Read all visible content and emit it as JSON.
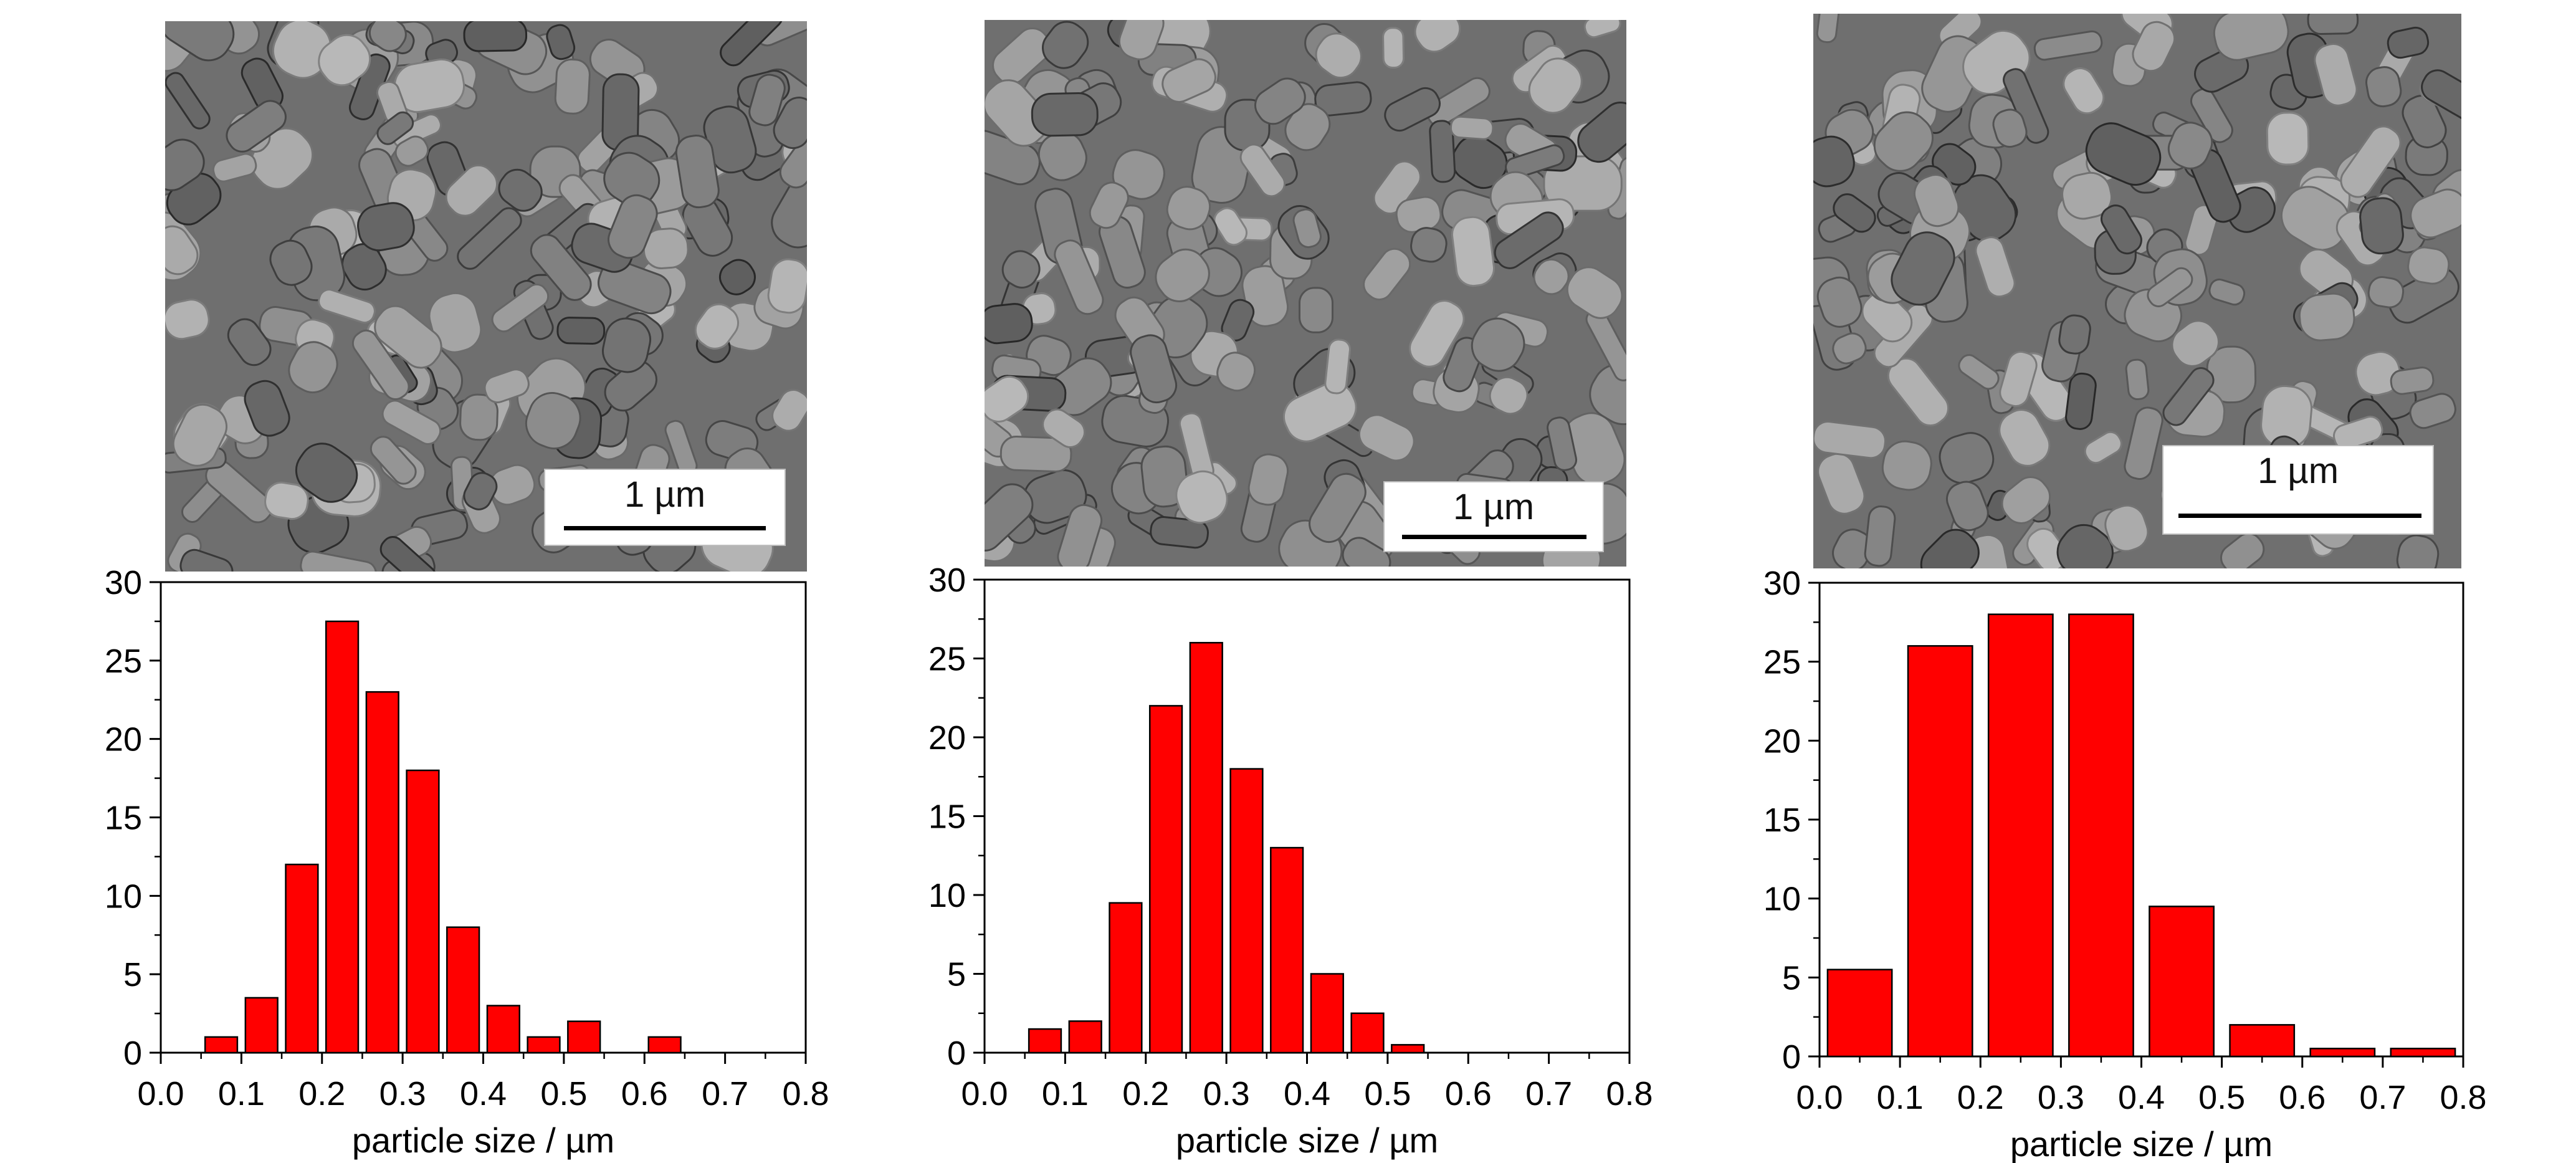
{
  "figure": {
    "panels": [
      {
        "scale_bar_label": "1 µm"
      },
      {
        "scale_bar_label": "1 µm"
      },
      {
        "scale_bar_label": "1 µm"
      }
    ]
  },
  "colors": {
    "bar_fill": "#ff0000",
    "bar_stroke": "#000000",
    "axis": "#000000",
    "sem_bg": "#7d7d7d"
  },
  "chart_data": [
    {
      "type": "bar",
      "xlabel": "particle size / µm",
      "ylabel": "",
      "xlim": [
        0.0,
        0.8
      ],
      "ylim": [
        0,
        30
      ],
      "x_ticks": [
        "0.0",
        "0.1",
        "0.2",
        "0.3",
        "0.4",
        "0.5",
        "0.6",
        "0.7",
        "0.8"
      ],
      "y_ticks": [
        "0",
        "5",
        "10",
        "15",
        "20",
        "25",
        "30"
      ],
      "bin_width": 0.04,
      "bins": [
        {
          "x": 0.075,
          "value": 1
        },
        {
          "x": 0.125,
          "value": 3.5
        },
        {
          "x": 0.175,
          "value": 12
        },
        {
          "x": 0.225,
          "value": 27.5
        },
        {
          "x": 0.275,
          "value": 23
        },
        {
          "x": 0.325,
          "value": 18
        },
        {
          "x": 0.375,
          "value": 8
        },
        {
          "x": 0.425,
          "value": 3
        },
        {
          "x": 0.475,
          "value": 1
        },
        {
          "x": 0.525,
          "value": 2
        },
        {
          "x": 0.625,
          "value": 1
        }
      ]
    },
    {
      "type": "bar",
      "xlabel": "particle size / µm",
      "ylabel": "",
      "xlim": [
        0.0,
        0.8
      ],
      "ylim": [
        0,
        30
      ],
      "x_ticks": [
        "0.0",
        "0.1",
        "0.2",
        "0.3",
        "0.4",
        "0.5",
        "0.6",
        "0.7",
        "0.8"
      ],
      "y_ticks": [
        "0",
        "5",
        "10",
        "15",
        "20",
        "25",
        "30"
      ],
      "bin_width": 0.04,
      "bins": [
        {
          "x": 0.075,
          "value": 1.5
        },
        {
          "x": 0.125,
          "value": 2
        },
        {
          "x": 0.175,
          "value": 9.5
        },
        {
          "x": 0.225,
          "value": 22
        },
        {
          "x": 0.275,
          "value": 26
        },
        {
          "x": 0.325,
          "value": 18
        },
        {
          "x": 0.375,
          "value": 13
        },
        {
          "x": 0.425,
          "value": 5
        },
        {
          "x": 0.475,
          "value": 2.5
        },
        {
          "x": 0.525,
          "value": 0.5
        }
      ]
    },
    {
      "type": "bar",
      "xlabel": "particle size / µm",
      "ylabel": "",
      "xlim": [
        0.0,
        0.8
      ],
      "ylim": [
        0,
        30
      ],
      "x_ticks": [
        "0.0",
        "0.1",
        "0.2",
        "0.3",
        "0.4",
        "0.5",
        "0.6",
        "0.7",
        "0.8"
      ],
      "y_ticks": [
        "0",
        "5",
        "10",
        "15",
        "20",
        "25",
        "30"
      ],
      "bin_width": 0.08,
      "bins": [
        {
          "x": 0.05,
          "value": 5.5
        },
        {
          "x": 0.15,
          "value": 26
        },
        {
          "x": 0.25,
          "value": 28
        },
        {
          "x": 0.35,
          "value": 28
        },
        {
          "x": 0.45,
          "value": 9.5
        },
        {
          "x": 0.55,
          "value": 2
        },
        {
          "x": 0.65,
          "value": 0.5
        },
        {
          "x": 0.75,
          "value": 0.5
        }
      ]
    }
  ]
}
